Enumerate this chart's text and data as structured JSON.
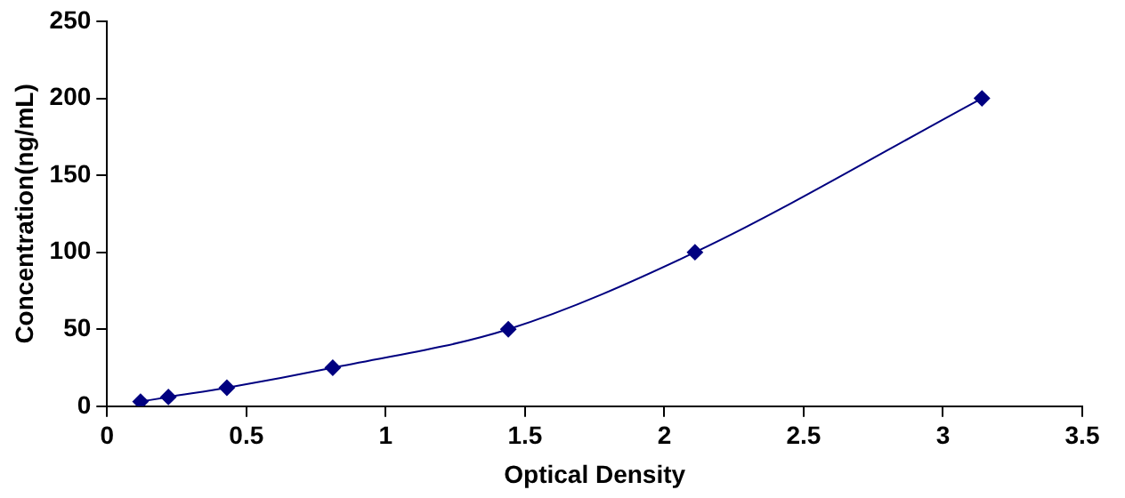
{
  "chart_data": {
    "type": "line",
    "xlabel": "Optical Density",
    "ylabel": "Concentration(ng/mL)",
    "x": [
      0.12,
      0.22,
      0.43,
      0.81,
      1.44,
      2.11,
      3.14
    ],
    "series": [
      {
        "color": "#000080",
        "values": [
          3,
          6,
          12,
          25,
          50,
          100,
          200
        ]
      }
    ],
    "xlim": [
      0,
      3.5
    ],
    "xticks": [
      0,
      0.5,
      1,
      1.5,
      2,
      2.5,
      3,
      3.5
    ],
    "ylim": [
      0,
      250
    ],
    "yticks": [
      0,
      50,
      100,
      150,
      200,
      250
    ],
    "grid": false,
    "legend": false,
    "marker": "diamond",
    "line_style": "solid"
  }
}
